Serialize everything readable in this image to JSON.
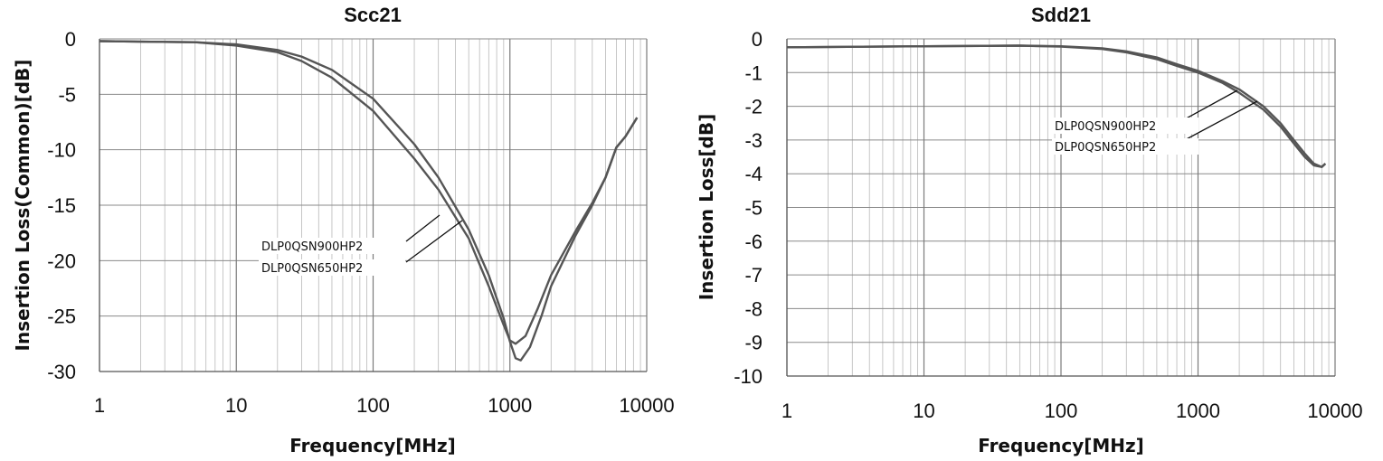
{
  "chart_data": [
    {
      "id": "scc21",
      "type": "line",
      "title": "Scc21",
      "xlabel": "Frequency[MHz]",
      "ylabel": "Insertion Loss(Common)[dB]",
      "x_scale": "log",
      "xlim": [
        1,
        10000
      ],
      "ylim": [
        -30,
        0
      ],
      "x_ticks": [
        "1",
        "10",
        "100",
        "1000",
        "10000"
      ],
      "y_ticks": [
        "0",
        "-5",
        "-10",
        "-15",
        "-20",
        "-25",
        "-30"
      ],
      "grid": true,
      "line_color": "#555555",
      "series": [
        {
          "name": "DLP0QSN900HP2",
          "points": [
            [
              1,
              -0.2
            ],
            [
              2,
              -0.25
            ],
            [
              5,
              -0.3
            ],
            [
              10,
              -0.6
            ],
            [
              20,
              -1.2
            ],
            [
              30,
              -2.0
            ],
            [
              50,
              -3.5
            ],
            [
              100,
              -6.5
            ],
            [
              200,
              -10.8
            ],
            [
              300,
              -13.6
            ],
            [
              500,
              -18.0
            ],
            [
              700,
              -22.3
            ],
            [
              900,
              -25.8
            ],
            [
              1000,
              -27.2
            ],
            [
              1100,
              -27.5
            ],
            [
              1300,
              -26.8
            ],
            [
              1600,
              -24.3
            ],
            [
              2000,
              -21.3
            ],
            [
              3000,
              -17.4
            ],
            [
              4000,
              -14.8
            ],
            [
              5000,
              -12.5
            ],
            [
              6000,
              -9.8
            ],
            [
              7000,
              -8.8
            ],
            [
              8500,
              -7.1
            ]
          ]
        },
        {
          "name": "DLP0QSN650HP2",
          "points": [
            [
              1,
              -0.2
            ],
            [
              2,
              -0.25
            ],
            [
              5,
              -0.3
            ],
            [
              10,
              -0.5
            ],
            [
              20,
              -1.0
            ],
            [
              30,
              -1.6
            ],
            [
              50,
              -2.8
            ],
            [
              100,
              -5.4
            ],
            [
              200,
              -9.5
            ],
            [
              300,
              -12.5
            ],
            [
              500,
              -17.2
            ],
            [
              700,
              -21.3
            ],
            [
              900,
              -25.2
            ],
            [
              1000,
              -27.3
            ],
            [
              1100,
              -28.8
            ],
            [
              1200,
              -29.0
            ],
            [
              1400,
              -27.8
            ],
            [
              1700,
              -25.0
            ],
            [
              2000,
              -22.3
            ],
            [
              3000,
              -17.8
            ],
            [
              4000,
              -15.0
            ],
            [
              5000,
              -12.5
            ],
            [
              6000,
              -9.8
            ],
            [
              7000,
              -8.8
            ],
            [
              8500,
              -7.1
            ]
          ]
        }
      ]
    },
    {
      "id": "sdd21",
      "type": "line",
      "title": "Sdd21",
      "xlabel": "Frequency[MHz]",
      "ylabel": "Insertion Loss[dB]",
      "x_scale": "log",
      "xlim": [
        1,
        10000
      ],
      "ylim": [
        -10,
        0
      ],
      "x_ticks": [
        "1",
        "10",
        "100",
        "1000",
        "10000"
      ],
      "y_ticks": [
        "0",
        "-1",
        "-2",
        "-3",
        "-4",
        "-5",
        "-6",
        "-7",
        "-8",
        "-9",
        "-10"
      ],
      "grid": true,
      "line_color": "#555555",
      "series": [
        {
          "name": "DLP0QSN900HP2",
          "points": [
            [
              1,
              -0.25
            ],
            [
              10,
              -0.22
            ],
            [
              50,
              -0.2
            ],
            [
              100,
              -0.23
            ],
            [
              200,
              -0.3
            ],
            [
              300,
              -0.4
            ],
            [
              500,
              -0.6
            ],
            [
              700,
              -0.8
            ],
            [
              1000,
              -1.0
            ],
            [
              1500,
              -1.3
            ],
            [
              2000,
              -1.6
            ],
            [
              3000,
              -2.1
            ],
            [
              4000,
              -2.6
            ],
            [
              5000,
              -3.1
            ],
            [
              6000,
              -3.5
            ],
            [
              7000,
              -3.75
            ],
            [
              8000,
              -3.8
            ],
            [
              8500,
              -3.7
            ]
          ]
        },
        {
          "name": "DLP0QSN650HP2",
          "points": [
            [
              1,
              -0.25
            ],
            [
              10,
              -0.22
            ],
            [
              50,
              -0.2
            ],
            [
              100,
              -0.22
            ],
            [
              200,
              -0.28
            ],
            [
              300,
              -0.37
            ],
            [
              500,
              -0.55
            ],
            [
              700,
              -0.75
            ],
            [
              1000,
              -0.95
            ],
            [
              1500,
              -1.25
            ],
            [
              2000,
              -1.5
            ],
            [
              3000,
              -2.0
            ],
            [
              4000,
              -2.5
            ],
            [
              5000,
              -3.0
            ],
            [
              6000,
              -3.4
            ],
            [
              7000,
              -3.7
            ],
            [
              8000,
              -3.8
            ],
            [
              8500,
              -3.7
            ]
          ]
        }
      ]
    }
  ]
}
